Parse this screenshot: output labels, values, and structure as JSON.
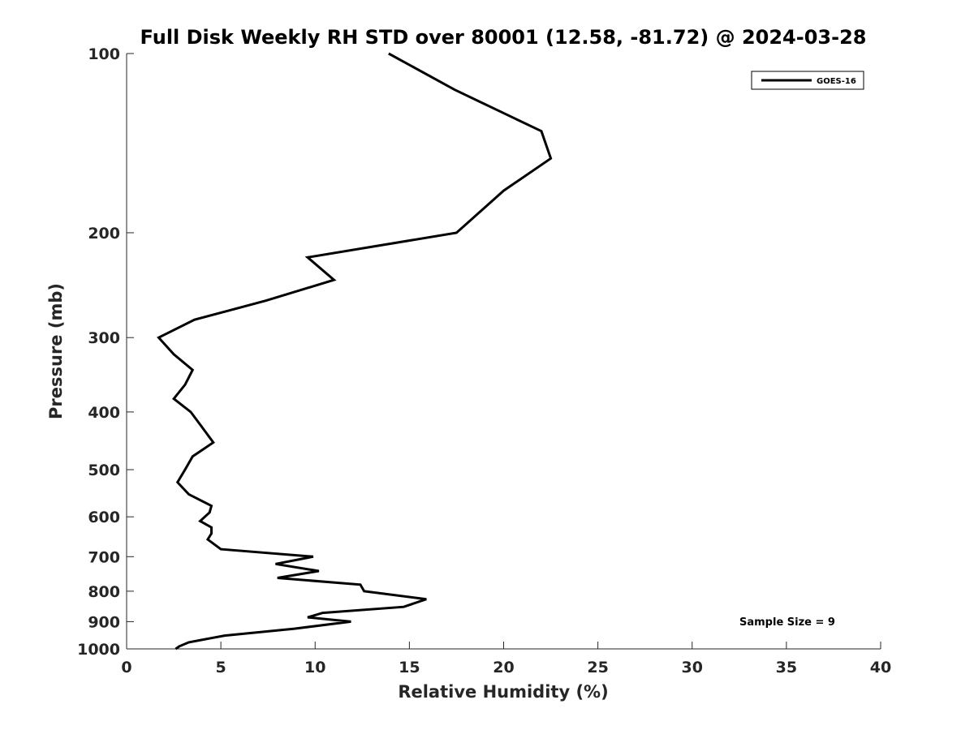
{
  "chart_data": {
    "type": "line",
    "title": "Full Disk Weekly RH STD over 80001 (12.58, -81.72) @ 2024-03-28",
    "xlabel": "Relative Humidity (%)",
    "ylabel": "Pressure (mb)",
    "xlim": [
      0,
      40
    ],
    "ylim": [
      1000,
      100
    ],
    "yscale": "log",
    "x_ticks": [
      0,
      5,
      10,
      15,
      20,
      25,
      30,
      35,
      40
    ],
    "y_ticks": [
      100,
      200,
      300,
      400,
      500,
      600,
      700,
      800,
      900,
      1000
    ],
    "legend": {
      "position": "top-right",
      "entries": [
        "GOES-16"
      ]
    },
    "annotation": "Sample Size = 9",
    "series": [
      {
        "name": "GOES-16",
        "color": "#000000",
        "points": [
          [
            13.9,
            100
          ],
          [
            17.4,
            115
          ],
          [
            22.0,
            135
          ],
          [
            22.5,
            150
          ],
          [
            20.0,
            170
          ],
          [
            17.5,
            200
          ],
          [
            9.6,
            220
          ],
          [
            11.0,
            240
          ],
          [
            7.4,
            260
          ],
          [
            3.6,
            280
          ],
          [
            1.7,
            300
          ],
          [
            2.5,
            320
          ],
          [
            3.5,
            340
          ],
          [
            3.1,
            360
          ],
          [
            2.5,
            380
          ],
          [
            3.4,
            400
          ],
          [
            3.9,
            420
          ],
          [
            4.6,
            450
          ],
          [
            3.5,
            475
          ],
          [
            3.1,
            500
          ],
          [
            2.7,
            525
          ],
          [
            3.3,
            550
          ],
          [
            4.5,
            575
          ],
          [
            4.4,
            590
          ],
          [
            3.9,
            610
          ],
          [
            4.5,
            625
          ],
          [
            4.5,
            640
          ],
          [
            4.3,
            655
          ],
          [
            5.0,
            680
          ],
          [
            9.9,
            700
          ],
          [
            7.9,
            720
          ],
          [
            10.2,
            740
          ],
          [
            8.0,
            760
          ],
          [
            12.4,
            780
          ],
          [
            12.6,
            800
          ],
          [
            15.9,
            825
          ],
          [
            14.7,
            850
          ],
          [
            10.4,
            870
          ],
          [
            9.6,
            885
          ],
          [
            11.9,
            900
          ],
          [
            8.9,
            925
          ],
          [
            5.2,
            950
          ],
          [
            3.3,
            975
          ],
          [
            2.8,
            990
          ],
          [
            2.6,
            1000
          ]
        ]
      }
    ]
  }
}
